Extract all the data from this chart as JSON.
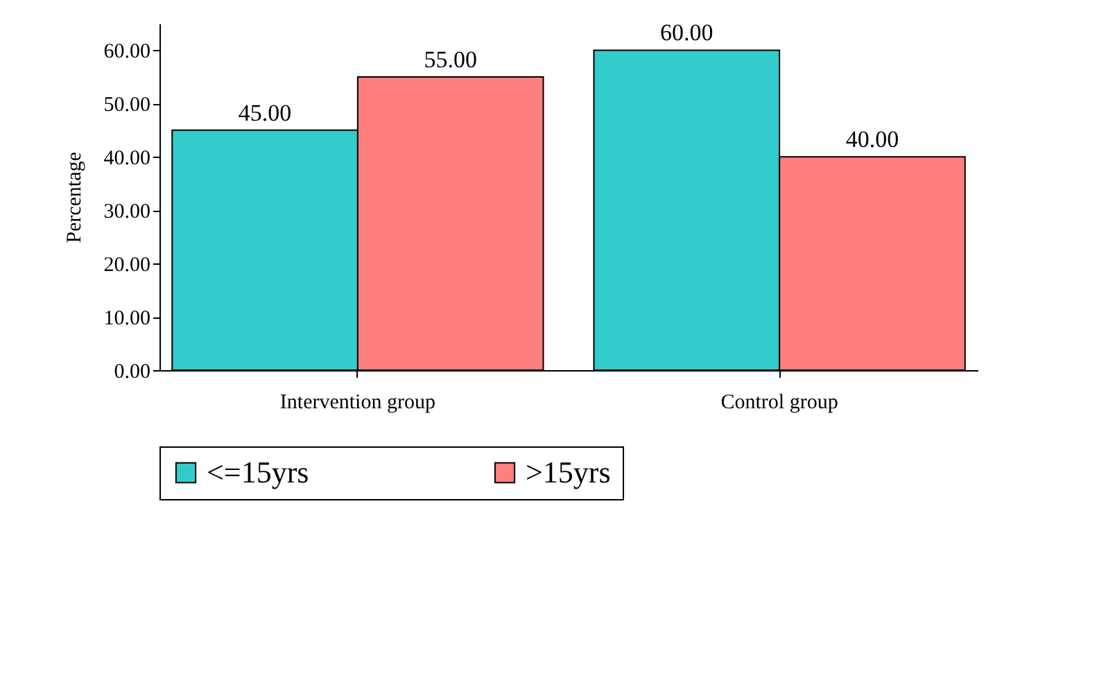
{
  "chart_data": {
    "type": "bar",
    "ylabel": "Percentage",
    "categories": [
      "Intervention group",
      "Control group"
    ],
    "series": [
      {
        "name": "<=15yrs",
        "color": "#33cccc",
        "values": [
          45,
          60
        ],
        "value_labels": [
          "45.00",
          "60.00"
        ]
      },
      {
        "name": ">15yrs",
        "color": "#ff7f7f",
        "values": [
          55,
          40
        ],
        "value_labels": [
          "55.00",
          "40.00"
        ]
      }
    ],
    "ylim": [
      0,
      65
    ],
    "yticks": [
      {
        "value": 0,
        "label": "0.00"
      },
      {
        "value": 10,
        "label": "10.00"
      },
      {
        "value": 20,
        "label": "20.00"
      },
      {
        "value": 30,
        "label": "30.00"
      },
      {
        "value": 40,
        "label": "40.00"
      },
      {
        "value": 50,
        "label": "50.00"
      },
      {
        "value": 60,
        "label": "60.00"
      }
    ],
    "grid": false,
    "legend": "bottom"
  }
}
